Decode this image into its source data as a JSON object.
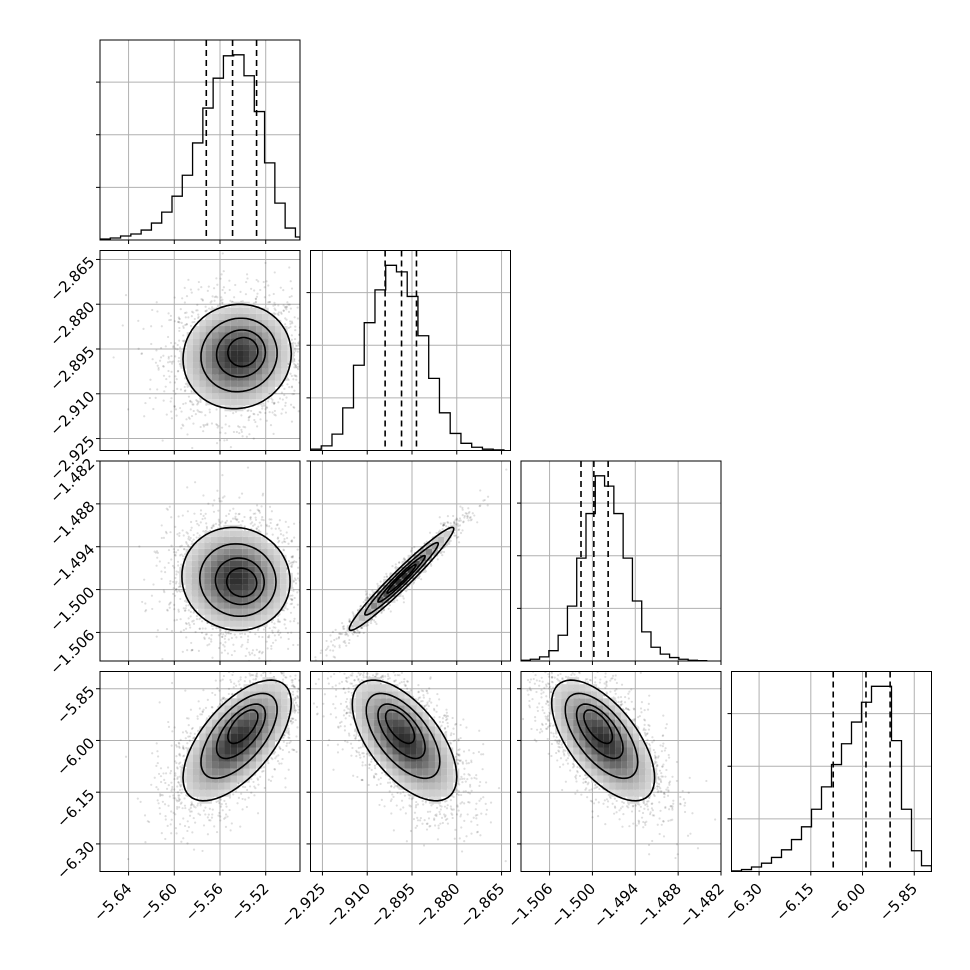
{
  "chart_data": {
    "type": "corner",
    "parameters": 4,
    "grid": true,
    "colors": {
      "line": "#000000",
      "density_dark": "#333333",
      "density_light": "#f4f4f4",
      "grid": "#b0b0b0"
    },
    "ranges": [
      [
        -5.665,
        -5.49
      ],
      [
        -2.929,
        -2.862
      ],
      [
        -1.51,
        -1.482
      ],
      [
        -6.38,
        -5.8
      ]
    ],
    "tick_labels": [
      [
        "−5.64",
        "−5.60",
        "−5.56",
        "−5.52"
      ],
      [
        "−2.925",
        "−2.910",
        "−2.895",
        "−2.880",
        "−2.865"
      ],
      [
        "−1.506",
        "−1.500",
        "−1.494",
        "−1.488",
        "−1.482"
      ],
      [
        "−6.30",
        "−6.15",
        "−6.00",
        "−5.85"
      ]
    ],
    "tick_values": [
      [
        -5.64,
        -5.6,
        -5.56,
        -5.52
      ],
      [
        -2.925,
        -2.91,
        -2.895,
        -2.88,
        -2.865
      ],
      [
        -1.506,
        -1.5,
        -1.494,
        -1.488,
        -1.482
      ],
      [
        -6.3,
        -6.15,
        -6.0,
        -5.85
      ]
    ],
    "quantiles": [
      [
        -5.572,
        -5.549,
        -5.528
      ],
      [
        -2.904,
        -2.8985,
        -2.8935
      ],
      [
        -1.5016,
        -1.4998,
        -1.4978
      ],
      [
        -6.085,
        -5.99,
        -5.92
      ]
    ],
    "histograms": [
      {
        "edges": [
          -5.665,
          -5.656,
          -5.647,
          -5.638,
          -5.629,
          -5.62,
          -5.611,
          -5.602,
          -5.593,
          -5.584,
          -5.575,
          -5.566,
          -5.557,
          -5.548,
          -5.539,
          -5.53,
          -5.521,
          -5.512,
          -5.503,
          -5.494,
          -5.49
        ],
        "counts": [
          2,
          4,
          8,
          12,
          20,
          34,
          56,
          88,
          130,
          195,
          265,
          325,
          370,
          372,
          330,
          258,
          155,
          74,
          24,
          6
        ]
      },
      {
        "edges": [
          -2.929,
          -2.9254,
          -2.9218,
          -2.9182,
          -2.9146,
          -2.911,
          -2.9074,
          -2.9038,
          -2.9002,
          -2.8966,
          -2.893,
          -2.8894,
          -2.8858,
          -2.8822,
          -2.8786,
          -2.875,
          -2.8714,
          -2.8678,
          -2.8642
        ],
        "counts": [
          4,
          14,
          50,
          130,
          260,
          390,
          490,
          565,
          545,
          470,
          350,
          220,
          115,
          52,
          22,
          10,
          4,
          2
        ]
      },
      {
        "edges": [
          -1.51,
          -1.5087,
          -1.5074,
          -1.5061,
          -1.5048,
          -1.5035,
          -1.5022,
          -1.5009,
          -1.4996,
          -1.4983,
          -1.497,
          -1.4957,
          -1.4944,
          -1.4931,
          -1.4918,
          -1.4905,
          -1.4892,
          -1.4879,
          -1.4866,
          -1.4853,
          -1.484
        ],
        "counts": [
          2,
          5,
          12,
          30,
          75,
          160,
          300,
          430,
          540,
          510,
          430,
          300,
          175,
          85,
          40,
          20,
          10,
          5,
          2,
          1
        ]
      },
      {
        "edges": [
          -6.38,
          -6.351,
          -6.322,
          -6.293,
          -6.264,
          -6.235,
          -6.206,
          -6.177,
          -6.148,
          -6.119,
          -6.09,
          -6.061,
          -6.032,
          -6.003,
          -5.974,
          -5.945,
          -5.916,
          -5.887,
          -5.858,
          -5.829,
          -5.8
        ],
        "counts": [
          2,
          6,
          14,
          26,
          44,
          68,
          100,
          140,
          195,
          265,
          335,
          400,
          468,
          530,
          580,
          580,
          410,
          195,
          65,
          18
        ]
      }
    ],
    "pairs": [
      {
        "row": 1,
        "col": 0,
        "center": [
          -5.545,
          -2.8975
        ],
        "sigma": [
          0.023,
          0.0085
        ],
        "rho": 0.05,
        "peak_shift": [
          0.005,
          0.0015
        ],
        "n_points": 2200
      },
      {
        "row": 2,
        "col": 0,
        "center": [
          -5.546,
          -1.4985
        ],
        "sigma": [
          0.023,
          0.0035
        ],
        "rho": -0.05,
        "peak_shift": [
          0.005,
          -0.0005
        ],
        "n_points": 2200
      },
      {
        "row": 2,
        "col": 1,
        "center": [
          -2.8985,
          -1.4985
        ],
        "sigma": [
          0.0085,
          0.0035
        ],
        "rho": 0.97,
        "peak_shift": [
          0.0,
          0.0
        ],
        "n_points": 1200
      },
      {
        "row": 3,
        "col": 0,
        "center": [
          -5.545,
          -6.0
        ],
        "sigma": [
          0.023,
          0.085
        ],
        "rho": 0.62,
        "peak_shift": [
          0.005,
          0.04
        ],
        "n_points": 2200
      },
      {
        "row": 3,
        "col": 1,
        "center": [
          -2.8975,
          -6.0
        ],
        "sigma": [
          0.0085,
          0.085
        ],
        "rho": -0.6,
        "peak_shift": [
          -0.0015,
          0.04
        ],
        "n_points": 2200
      },
      {
        "row": 3,
        "col": 2,
        "center": [
          -1.4985,
          -6.0
        ],
        "sigma": [
          0.0035,
          0.085
        ],
        "rho": -0.62,
        "peak_shift": [
          -0.0007,
          0.04
        ],
        "n_points": 2200
      }
    ],
    "contour_levels": [
      0.12,
      0.35,
      0.65,
      0.85
    ]
  }
}
